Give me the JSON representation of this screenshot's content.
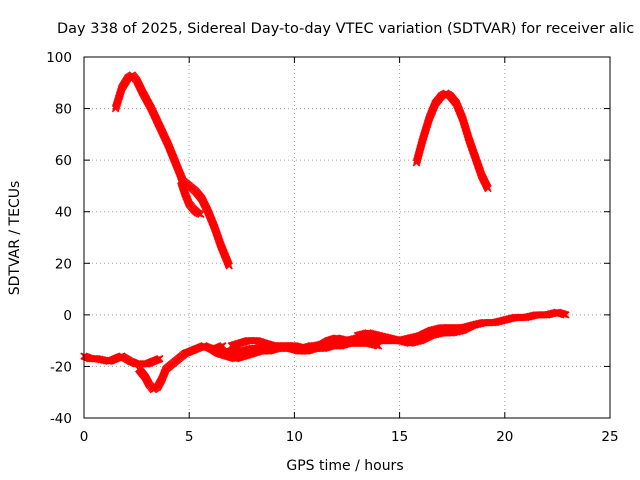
{
  "chart_data": {
    "type": "scatter",
    "title": "Day 338 of 2025, Sidereal Day-to-day VTEC variation (SDTVAR) for receiver alic",
    "xlabel": "GPS time / hours",
    "ylabel": "SDTVAR / TECUs",
    "xlim": [
      0,
      25
    ],
    "ylim": [
      -40,
      100
    ],
    "xticks": [
      "0",
      "5",
      "10",
      "15",
      "20",
      "25"
    ],
    "yticks": [
      "-40",
      "-20",
      "0",
      "20",
      "40",
      "60",
      "80",
      "100"
    ],
    "xtick_values": [
      0,
      5,
      10,
      15,
      20,
      25
    ],
    "ytick_values": [
      -40,
      -20,
      0,
      20,
      40,
      60,
      80,
      100
    ],
    "grid": true,
    "legend": "none",
    "marker_color": "#ff0000",
    "series": [
      {
        "x": [
          1.5,
          1.8,
          2.1,
          2.3,
          2.5,
          2.8,
          3.2,
          3.6,
          4.0,
          4.4,
          4.7,
          5.0,
          5.3,
          5.6,
          5.9,
          6.2,
          6.5,
          6.9
        ],
        "y": [
          80,
          88,
          92,
          93,
          91,
          86,
          80,
          73,
          66,
          58,
          52,
          50,
          48,
          45,
          40,
          34,
          27,
          19
        ]
      },
      {
        "x": [
          4.6,
          4.8,
          5.0,
          5.2,
          5.4,
          5.55
        ],
        "y": [
          52,
          47,
          43,
          41,
          39.5,
          39
        ]
      },
      {
        "x": [
          15.8,
          16.1,
          16.4,
          16.7,
          17.0,
          17.2,
          17.4,
          17.7,
          18.0,
          18.3,
          18.6,
          18.9,
          19.2
        ],
        "y": [
          59,
          68,
          76,
          82,
          85,
          86,
          85,
          82,
          76,
          68,
          61,
          54,
          49
        ]
      },
      {
        "x": [
          0,
          0.3,
          0.6,
          0.9,
          1.2,
          1.5,
          1.8,
          2.0,
          2.2,
          2.5,
          2.8,
          3.0,
          3.3,
          3.6
        ],
        "y": [
          -16,
          -17,
          -17,
          -17.5,
          -18,
          -17,
          -16,
          -17,
          -18,
          -19,
          -19,
          -19,
          -18,
          -17
        ]
      },
      {
        "x": [
          2.6,
          2.9,
          3.1,
          3.3,
          3.5,
          3.7,
          3.9,
          4.2,
          4.5,
          4.8,
          5.1,
          5.4,
          5.7,
          6.0,
          6.3,
          6.6
        ],
        "y": [
          -21,
          -24,
          -27,
          -29,
          -28,
          -25,
          -21,
          -19,
          -17,
          -15,
          -14,
          -13,
          -12,
          -13,
          -13,
          -12
        ]
      },
      {
        "x": [
          6.5,
          7.0,
          7.5,
          8.0,
          8.5,
          9.0,
          9.5,
          10.0,
          10.5,
          11.0,
          11.5,
          12.0,
          12.5,
          13.0,
          13.5,
          14.0,
          14.5,
          15.0,
          15.5,
          16.0,
          16.5,
          17.0,
          17.5,
          18.0,
          18.5,
          19.0,
          19.5,
          20.0,
          20.5,
          21.0,
          21.5,
          22.0,
          22.5,
          22.9
        ],
        "y": [
          -15,
          -14,
          -14,
          -13,
          -13,
          -13,
          -12,
          -12,
          -13,
          -12,
          -11,
          -10,
          -10,
          -9,
          -9,
          -10,
          -10,
          -10,
          -9,
          -8,
          -6,
          -5,
          -5,
          -5,
          -4,
          -3,
          -3,
          -2,
          -1,
          -1,
          0,
          0,
          1,
          0
        ]
      },
      {
        "x": [
          6.0,
          6.4,
          6.8,
          7.2,
          7.6,
          8.0,
          8.4,
          8.8,
          9.2,
          9.6,
          10.0,
          10.4,
          10.8,
          11.2,
          11.6,
          12.0,
          12.5,
          13.0,
          13.5,
          14.0
        ],
        "y": [
          -13,
          -15,
          -16,
          -17,
          -16,
          -15,
          -14,
          -14,
          -13,
          -13,
          -13,
          -13,
          -12,
          -12,
          -10,
          -9,
          -10,
          -11,
          -11,
          -12
        ]
      },
      {
        "x": [
          7.0,
          7.4,
          7.8,
          8.2,
          8.6,
          9.0,
          9.4,
          9.8,
          10.2,
          10.6,
          11.0,
          11.4,
          11.8,
          12.2,
          12.6,
          13.0,
          13.4,
          13.8
        ],
        "y": [
          -12,
          -11,
          -10,
          -10,
          -11,
          -12,
          -12,
          -13,
          -14,
          -14,
          -13,
          -13,
          -12,
          -12,
          -11,
          -11,
          -10,
          -9
        ]
      },
      {
        "x": [
          13.0,
          13.5,
          14.0,
          14.5,
          15.0,
          15.5,
          16.0,
          16.5,
          17.0,
          17.5,
          18.0,
          18.5,
          19.0
        ],
        "y": [
          -8,
          -7,
          -8,
          -9,
          -10,
          -11,
          -10,
          -8,
          -7,
          -7,
          -6,
          -4,
          -3
        ]
      }
    ]
  }
}
